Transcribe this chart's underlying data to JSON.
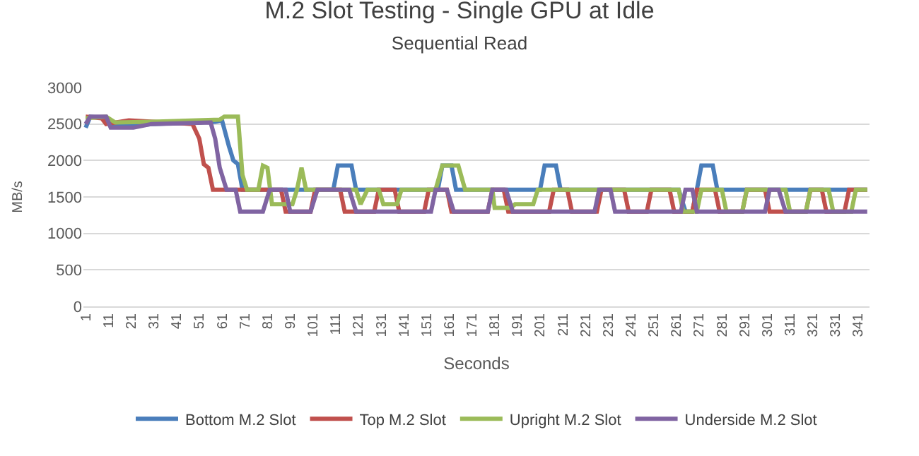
{
  "chart_data": {
    "type": "line",
    "title": "M.2 Slot Testing - Single GPU at Idle",
    "subtitle": "Sequential Read",
    "xlabel": "Seconds",
    "ylabel": "MB/s",
    "xlim": [
      0,
      346
    ],
    "xticks": [
      1,
      11,
      21,
      31,
      41,
      51,
      61,
      71,
      81,
      91,
      101,
      111,
      121,
      131,
      141,
      151,
      161,
      171,
      181,
      191,
      201,
      211,
      221,
      231,
      241,
      251,
      261,
      271,
      281,
      291,
      301,
      311,
      321,
      331,
      341
    ],
    "ylim": [
      0,
      3000
    ],
    "yticks": [
      0,
      500,
      1000,
      1500,
      2000,
      2500,
      3000
    ],
    "grid": "y",
    "legend": "bottom",
    "marker": "none",
    "line_style": "solid",
    "series": [
      {
        "name": "Bottom M.2 Slot",
        "color": "#4a7ebb",
        "x": [
          1,
          3,
          10,
          13,
          20,
          30,
          50,
          58,
          61,
          64,
          66,
          68,
          70,
          110,
          112,
          118,
          120,
          156,
          158,
          162,
          164,
          201,
          203,
          208,
          210,
          262,
          265,
          268,
          270,
          272,
          277,
          279,
          345
        ],
        "values": [
          2450,
          2600,
          2580,
          2480,
          2470,
          2500,
          2520,
          2530,
          2550,
          2200,
          2000,
          1950,
          1600,
          1600,
          1930,
          1930,
          1600,
          1600,
          1930,
          1930,
          1600,
          1600,
          1930,
          1930,
          1600,
          1600,
          1300,
          1300,
          1600,
          1930,
          1930,
          1600,
          1600
        ]
      },
      {
        "name": "Top M.2 Slot",
        "color": "#c0504d",
        "x": [
          1,
          8,
          10,
          20,
          48,
          51,
          53,
          55,
          57,
          87,
          89,
          100,
          102,
          113,
          115,
          128,
          130,
          137,
          139,
          150,
          152,
          160,
          162,
          178,
          180,
          185,
          187,
          205,
          207,
          213,
          215,
          226,
          228,
          238,
          240,
          248,
          250,
          258,
          260,
          268,
          270,
          278,
          280,
          290,
          292,
          300,
          302,
          318,
          320,
          325,
          327,
          335,
          337,
          345
        ],
        "values": [
          2600,
          2580,
          2500,
          2550,
          2500,
          2300,
          1950,
          1900,
          1600,
          1600,
          1300,
          1300,
          1600,
          1600,
          1300,
          1300,
          1600,
          1600,
          1300,
          1300,
          1600,
          1600,
          1300,
          1300,
          1600,
          1600,
          1300,
          1300,
          1600,
          1600,
          1300,
          1300,
          1600,
          1600,
          1300,
          1300,
          1600,
          1600,
          1300,
          1300,
          1600,
          1600,
          1300,
          1300,
          1600,
          1600,
          1300,
          1300,
          1600,
          1600,
          1300,
          1300,
          1600,
          1600
        ]
      },
      {
        "name": "Upright M.2 Slot",
        "color": "#9bbb59",
        "x": [
          1,
          10,
          14,
          30,
          60,
          62,
          68,
          70,
          72,
          77,
          79,
          81,
          83,
          92,
          94,
          96,
          98,
          100,
          120,
          122,
          125,
          130,
          132,
          138,
          140,
          155,
          158,
          165,
          168,
          180,
          181,
          188,
          190,
          198,
          200,
          262,
          264,
          270,
          272,
          281,
          283,
          290,
          292,
          309,
          311,
          318,
          320,
          328,
          330,
          338,
          340,
          345
        ],
        "values": [
          2580,
          2600,
          2520,
          2530,
          2560,
          2600,
          2600,
          1800,
          1600,
          1600,
          1930,
          1900,
          1400,
          1400,
          1600,
          1900,
          1600,
          1600,
          1600,
          1400,
          1600,
          1600,
          1400,
          1400,
          1600,
          1600,
          1930,
          1930,
          1600,
          1600,
          1350,
          1350,
          1400,
          1400,
          1600,
          1600,
          1300,
          1300,
          1600,
          1600,
          1300,
          1300,
          1600,
          1600,
          1300,
          1300,
          1600,
          1600,
          1300,
          1300,
          1600,
          1600
        ]
      },
      {
        "name": "Underside M.2 Slot",
        "color": "#8064a2",
        "x": [
          1,
          3,
          10,
          12,
          22,
          30,
          56,
          58,
          60,
          62,
          63,
          67,
          69,
          79,
          82,
          89,
          91,
          100,
          103,
          117,
          120,
          153,
          155,
          160,
          163,
          178,
          180,
          186,
          189,
          205,
          207,
          225,
          227,
          232,
          234,
          263,
          265,
          268,
          270,
          300,
          302,
          306,
          309,
          345
        ],
        "values": [
          2500,
          2600,
          2600,
          2450,
          2450,
          2500,
          2520,
          2300,
          1900,
          1700,
          1600,
          1600,
          1300,
          1300,
          1600,
          1600,
          1300,
          1300,
          1600,
          1600,
          1300,
          1300,
          1600,
          1600,
          1300,
          1300,
          1600,
          1600,
          1300,
          1300,
          1300,
          1300,
          1600,
          1600,
          1300,
          1300,
          1600,
          1600,
          1300,
          1300,
          1600,
          1600,
          1300,
          1300
        ]
      }
    ]
  }
}
